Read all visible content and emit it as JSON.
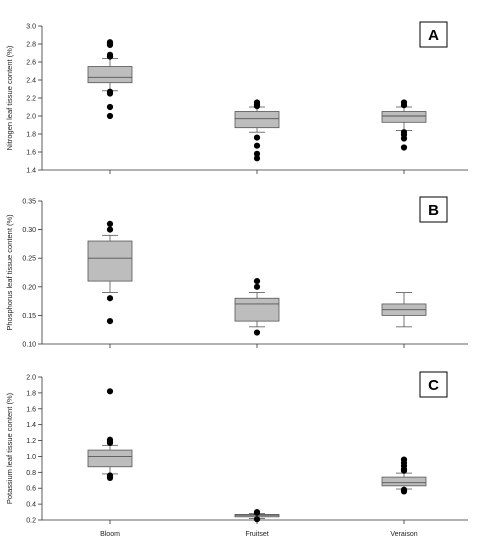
{
  "chart_data": [
    {
      "type": "box",
      "panel": "A",
      "ylabel": "Nitrogen leaf tissue content (%)",
      "ylim": [
        1.4,
        3.0
      ],
      "yticks": [
        1.4,
        1.6,
        1.8,
        2.0,
        2.2,
        2.4,
        2.6,
        2.8,
        3.0
      ],
      "ytick_labels": [
        "1.4",
        "1.6",
        "1.8",
        "2.0",
        "2.2",
        "2.4",
        "2.6",
        "2.8",
        "3.0"
      ],
      "categories": [
        "Bloom",
        "Fruitset",
        "Veraison"
      ],
      "boxes": [
        {
          "category": "Bloom",
          "whisker_low": 2.28,
          "q1": 2.37,
          "median": 2.43,
          "q3": 2.55,
          "whisker_high": 2.64,
          "outliers": [
            2.0,
            2.1,
            2.25,
            2.27,
            2.66,
            2.68,
            2.79,
            2.81,
            2.82
          ]
        },
        {
          "category": "Fruitset",
          "whisker_low": 1.82,
          "q1": 1.87,
          "median": 1.97,
          "q3": 2.05,
          "whisker_high": 2.1,
          "outliers": [
            1.53,
            1.58,
            1.67,
            1.76,
            2.11,
            2.13,
            2.15
          ]
        },
        {
          "category": "Veraison",
          "whisker_low": 1.84,
          "q1": 1.93,
          "median": 2.0,
          "q3": 2.05,
          "whisker_high": 2.1,
          "outliers": [
            1.65,
            1.75,
            1.79,
            1.82,
            2.12,
            2.15
          ]
        }
      ]
    },
    {
      "type": "box",
      "panel": "B",
      "ylabel": "Phosphorus leaf tissue content (%)",
      "ylim": [
        0.1,
        0.35
      ],
      "yticks": [
        0.1,
        0.15,
        0.2,
        0.25,
        0.3,
        0.35
      ],
      "ytick_labels": [
        "0.10",
        "0.15",
        "0.20",
        "0.25",
        "0.30",
        "0.35"
      ],
      "categories": [
        "Bloom",
        "Fruitset",
        "Veraison"
      ],
      "boxes": [
        {
          "category": "Bloom",
          "whisker_low": 0.19,
          "q1": 0.21,
          "median": 0.25,
          "q3": 0.28,
          "whisker_high": 0.29,
          "outliers": [
            0.14,
            0.18,
            0.3,
            0.31
          ]
        },
        {
          "category": "Fruitset",
          "whisker_low": 0.13,
          "q1": 0.14,
          "median": 0.17,
          "q3": 0.18,
          "whisker_high": 0.19,
          "outliers": [
            0.12,
            0.2,
            0.21
          ]
        },
        {
          "category": "Veraison",
          "whisker_low": 0.13,
          "q1": 0.15,
          "median": 0.16,
          "q3": 0.17,
          "whisker_high": 0.19,
          "outliers": []
        }
      ]
    },
    {
      "type": "box",
      "panel": "C",
      "ylabel": "Potassium leaf tissue content (%)",
      "ylim": [
        0.2,
        2.0
      ],
      "yticks": [
        0.2,
        0.4,
        0.6,
        0.8,
        1.0,
        1.2,
        1.4,
        1.6,
        1.8,
        2.0
      ],
      "ytick_labels": [
        "0.2",
        "0.4",
        "0.6",
        "0.8",
        "1.0",
        "1.2",
        "1.4",
        "1.6",
        "1.8",
        "2.0"
      ],
      "categories": [
        "Bloom",
        "Fruitset",
        "Veraison"
      ],
      "xtick_labels": [
        "Bloom",
        "Fruitset",
        "Veraison"
      ],
      "boxes": [
        {
          "category": "Bloom",
          "whisker_low": 0.78,
          "q1": 0.87,
          "median": 1.0,
          "q3": 1.08,
          "whisker_high": 1.14,
          "outliers": [
            0.73,
            0.75,
            0.76,
            1.17,
            1.19,
            1.21,
            1.82
          ]
        },
        {
          "category": "Fruitset",
          "whisker_low": 0.22,
          "q1": 0.24,
          "median": 0.26,
          "q3": 0.27,
          "whisker_high": 0.28,
          "outliers": [
            0.21,
            0.29,
            0.3
          ]
        },
        {
          "category": "Veraison",
          "whisker_low": 0.59,
          "q1": 0.63,
          "median": 0.67,
          "q3": 0.74,
          "whisker_high": 0.79,
          "outliers": [
            0.56,
            0.57,
            0.58,
            0.82,
            0.84,
            0.88,
            0.92,
            0.96
          ]
        }
      ]
    }
  ],
  "style": {
    "box_fill": "#bdbdbd",
    "box_stroke": "#555555",
    "outlier_color": "#000000",
    "axis_color": "#333333"
  }
}
